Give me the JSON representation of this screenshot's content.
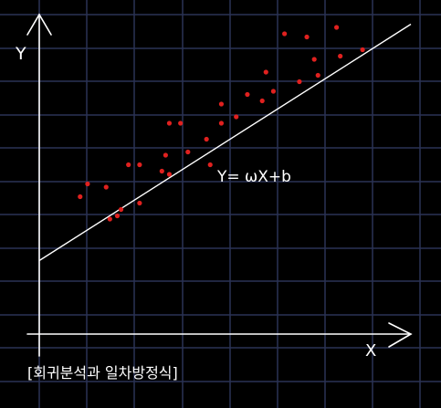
{
  "labels": {
    "y_axis": "Y",
    "x_axis": "X",
    "equation": "Y= ωX+b",
    "caption": "[회귀분석과 일차방정식]"
  },
  "colors": {
    "background": "#000000",
    "grid": "#2a3355",
    "axis": "#ffffff",
    "line": "#ffffff",
    "points": "#e0211f"
  },
  "chart_data": {
    "type": "scatter",
    "xlim": [
      0,
      1
    ],
    "ylim": [
      0,
      1
    ],
    "grid": true,
    "regression_line": {
      "from": [
        0.0,
        0.23
      ],
      "to": [
        1.0,
        0.97
      ]
    },
    "points": [
      [
        0.11,
        0.43
      ],
      [
        0.13,
        0.47
      ],
      [
        0.18,
        0.46
      ],
      [
        0.19,
        0.36
      ],
      [
        0.21,
        0.37
      ],
      [
        0.22,
        0.39
      ],
      [
        0.24,
        0.53
      ],
      [
        0.27,
        0.41
      ],
      [
        0.27,
        0.53
      ],
      [
        0.33,
        0.51
      ],
      [
        0.34,
        0.56
      ],
      [
        0.35,
        0.66
      ],
      [
        0.35,
        0.5
      ],
      [
        0.38,
        0.66
      ],
      [
        0.4,
        0.57
      ],
      [
        0.45,
        0.61
      ],
      [
        0.46,
        0.53
      ],
      [
        0.49,
        0.66
      ],
      [
        0.49,
        0.72
      ],
      [
        0.53,
        0.68
      ],
      [
        0.56,
        0.75
      ],
      [
        0.6,
        0.73
      ],
      [
        0.61,
        0.82
      ],
      [
        0.63,
        0.76
      ],
      [
        0.66,
        0.94
      ],
      [
        0.7,
        0.79
      ],
      [
        0.72,
        0.93
      ],
      [
        0.74,
        0.86
      ],
      [
        0.75,
        0.81
      ],
      [
        0.8,
        0.96
      ],
      [
        0.81,
        0.87
      ],
      [
        0.87,
        0.89
      ]
    ]
  }
}
